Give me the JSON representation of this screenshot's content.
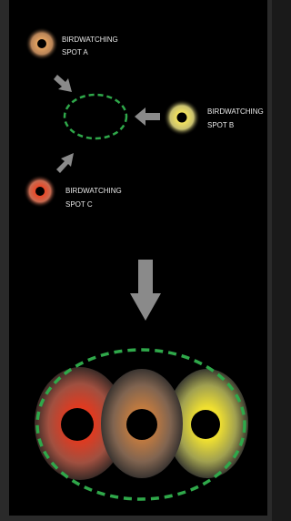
{
  "nodes": [
    {
      "label": [
        "BIRDWATCHING",
        "SPOT A"
      ]
    },
    {
      "label": [
        "BIRDWATCHING",
        "SPOT B"
      ]
    },
    {
      "label": [
        "BIRDWATCHING",
        "SPOT C"
      ]
    }
  ]
}
